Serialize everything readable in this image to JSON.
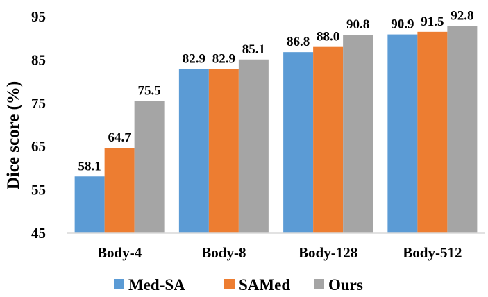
{
  "chart_data": {
    "type": "bar",
    "title": "",
    "xlabel": "",
    "ylabel": "Dice score (%)",
    "ylim": [
      45,
      95
    ],
    "yticks": [
      45,
      55,
      65,
      75,
      85,
      95
    ],
    "categories": [
      "Body-4",
      "Body-8",
      "Body-128",
      "Body-512"
    ],
    "series": [
      {
        "name": "Med-SA",
        "color": "#5B9BD5",
        "values": [
          58.1,
          82.9,
          86.8,
          90.9
        ],
        "labels": [
          "58.1",
          "82.9",
          "86.8",
          "90.9"
        ]
      },
      {
        "name": "SAMed",
        "color": "#ED7D31",
        "values": [
          64.7,
          82.9,
          88.0,
          91.5
        ],
        "labels": [
          "64.7",
          "82.9",
          "88.0",
          "91.5"
        ]
      },
      {
        "name": "Ours",
        "color": "#A5A5A5",
        "values": [
          75.5,
          85.1,
          90.8,
          92.8
        ],
        "labels": [
          "75.5",
          "85.1",
          "90.8",
          "92.8"
        ]
      }
    ],
    "legend_position": "bottom",
    "grid": false
  }
}
